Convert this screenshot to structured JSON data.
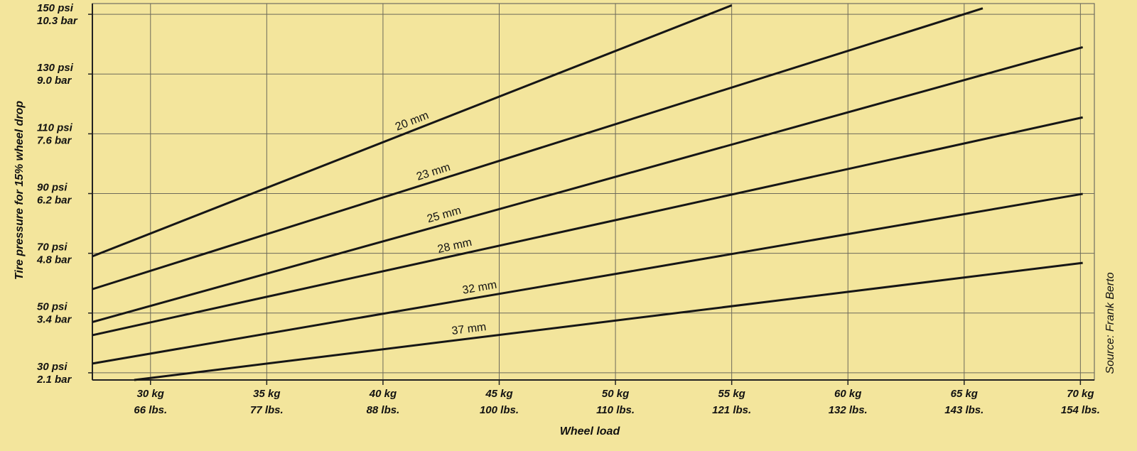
{
  "chart_data": {
    "type": "line",
    "x_label": "Wheel load",
    "y_label": "Tire pressure for 15% wheel drop",
    "source": "Source: Frank Berto",
    "xlim": [
      27.5,
      70.6
    ],
    "ylim": [
      27.6,
      153.6
    ],
    "xticks": [
      {
        "value": 30,
        "label": "30 kg",
        "label2": "66 lbs."
      },
      {
        "value": 35,
        "label": "35 kg",
        "label2": "77 lbs."
      },
      {
        "value": 40,
        "label": "40 kg",
        "label2": "88 lbs."
      },
      {
        "value": 45,
        "label": "45 kg",
        "label2": "100 lbs."
      },
      {
        "value": 50,
        "label": "50 kg",
        "label2": "110 lbs."
      },
      {
        "value": 55,
        "label": "55 kg",
        "label2": "121 lbs."
      },
      {
        "value": 60,
        "label": "60 kg",
        "label2": "132 lbs."
      },
      {
        "value": 65,
        "label": "65 kg",
        "label2": "143 lbs."
      },
      {
        "value": 70,
        "label": "70 kg",
        "label2": "154 lbs."
      }
    ],
    "yticks": [
      {
        "value": 30,
        "label": "30 psi",
        "label2": "2.1 bar"
      },
      {
        "value": 50,
        "label": "50 psi",
        "label2": "3.4 bar"
      },
      {
        "value": 70,
        "label": "70 psi",
        "label2": "4.8 bar"
      },
      {
        "value": 90,
        "label": "90 psi",
        "label2": "6.2 bar"
      },
      {
        "value": 110,
        "label": "110 psi",
        "label2": "7.6 bar"
      },
      {
        "value": 130,
        "label": "130 psi",
        "label2": "9.0 bar"
      },
      {
        "value": 150,
        "label": "150 psi",
        "label2": "10.3 bar"
      }
    ],
    "grid": true,
    "series": [
      {
        "name": "20 mm",
        "color": "#161616",
        "x": [
          27.5,
          55
        ],
        "values": [
          69,
          153
        ]
      },
      {
        "name": "23 mm",
        "color": "#161616",
        "x": [
          27.5,
          65.8
        ],
        "values": [
          58,
          152
        ]
      },
      {
        "name": "25 mm",
        "color": "#161616",
        "x": [
          27.5,
          70.1
        ],
        "values": [
          47,
          139
        ]
      },
      {
        "name": "28 mm",
        "color": "#161616",
        "x": [
          27.5,
          70.1
        ],
        "values": [
          42.6,
          115.5
        ]
      },
      {
        "name": "32 mm",
        "color": "#161616",
        "x": [
          27.5,
          70.1
        ],
        "values": [
          33.1,
          89.9
        ]
      },
      {
        "name": "37 mm",
        "color": "#161616",
        "x": [
          29.3,
          70.1
        ],
        "values": [
          27.6,
          66.8
        ]
      }
    ]
  }
}
